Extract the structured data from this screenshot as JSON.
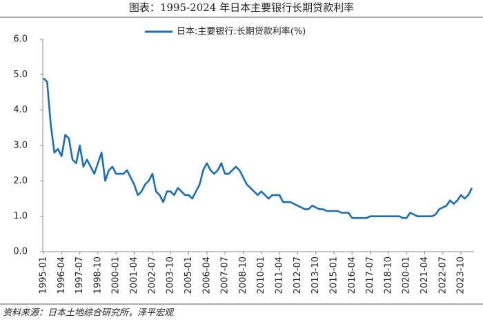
{
  "chart_data": {
    "type": "line",
    "title": "图表：1995-2024 年日本主要银行长期贷款利率",
    "source": "资料来源：日本土地综合研究所，泽平宏观",
    "categories": [
      "1995-01",
      null,
      null,
      null,
      null,
      "1996-04",
      null,
      null,
      null,
      null,
      "1997-07",
      null,
      null,
      null,
      null,
      "1998-10",
      null,
      null,
      null,
      null,
      "2000-01",
      null,
      null,
      null,
      null,
      "2001-04",
      null,
      null,
      null,
      null,
      "2002-07",
      null,
      null,
      null,
      null,
      "2003-10",
      null,
      null,
      null,
      null,
      "2005-01",
      null,
      null,
      null,
      null,
      "2006-04",
      null,
      null,
      null,
      null,
      "2007-07",
      null,
      null,
      null,
      null,
      "2008-10",
      null,
      null,
      null,
      null,
      "2010-01",
      null,
      null,
      null,
      null,
      "2011-04",
      null,
      null,
      null,
      null,
      "2012-07",
      null,
      null,
      null,
      null,
      "2013-10",
      null,
      null,
      null,
      null,
      "2015-01",
      null,
      null,
      null,
      null,
      "2016-04",
      null,
      null,
      null,
      null,
      "2017-07",
      null,
      null,
      null,
      null,
      "2018-10",
      null,
      null,
      null,
      null,
      "2020-01",
      null,
      null,
      null,
      null,
      "2021-04",
      null,
      null,
      null,
      null,
      "2022-07",
      null,
      null,
      null,
      null,
      "2023-10",
      null,
      null,
      null
    ],
    "series": [
      {
        "name": "日本:主要银行:长期贷款利率(%)",
        "color": "#1b6db4",
        "values": [
          4.9,
          4.8,
          3.6,
          2.8,
          2.9,
          2.7,
          3.3,
          3.2,
          2.6,
          2.5,
          3.0,
          2.4,
          2.6,
          2.4,
          2.2,
          2.5,
          2.8,
          2.0,
          2.3,
          2.4,
          2.2,
          2.2,
          2.2,
          2.3,
          2.1,
          1.9,
          1.6,
          1.7,
          1.9,
          2.0,
          2.2,
          1.7,
          1.6,
          1.4,
          1.7,
          1.7,
          1.6,
          1.8,
          1.7,
          1.6,
          1.6,
          1.5,
          1.7,
          1.9,
          2.3,
          2.5,
          2.3,
          2.2,
          2.3,
          2.5,
          2.2,
          2.2,
          2.3,
          2.4,
          2.3,
          2.1,
          1.9,
          1.8,
          1.7,
          1.6,
          1.7,
          1.6,
          1.5,
          1.6,
          1.6,
          1.6,
          1.4,
          1.4,
          1.4,
          1.35,
          1.3,
          1.25,
          1.2,
          1.2,
          1.3,
          1.25,
          1.2,
          1.2,
          1.15,
          1.15,
          1.15,
          1.15,
          1.1,
          1.1,
          1.1,
          0.95,
          0.95,
          0.95,
          0.95,
          0.95,
          1.0,
          1.0,
          1.0,
          1.0,
          1.0,
          1.0,
          1.0,
          1.0,
          1.0,
          0.95,
          0.95,
          1.1,
          1.05,
          1.0,
          1.0,
          1.0,
          1.0,
          1.0,
          1.05,
          1.2,
          1.25,
          1.3,
          1.45,
          1.35,
          1.45,
          1.6,
          1.5,
          1.6,
          1.8
        ]
      }
    ],
    "ylim": [
      0,
      6
    ],
    "yticks": [
      {
        "value": 0,
        "label": "0.0"
      },
      {
        "value": 1,
        "label": "1.0"
      },
      {
        "value": 2,
        "label": "2.0"
      },
      {
        "value": 3,
        "label": "3.0"
      },
      {
        "value": 4,
        "label": "4.0"
      },
      {
        "value": 5,
        "label": "5.0"
      },
      {
        "value": 6,
        "label": "6.0"
      }
    ],
    "legend": "top"
  }
}
